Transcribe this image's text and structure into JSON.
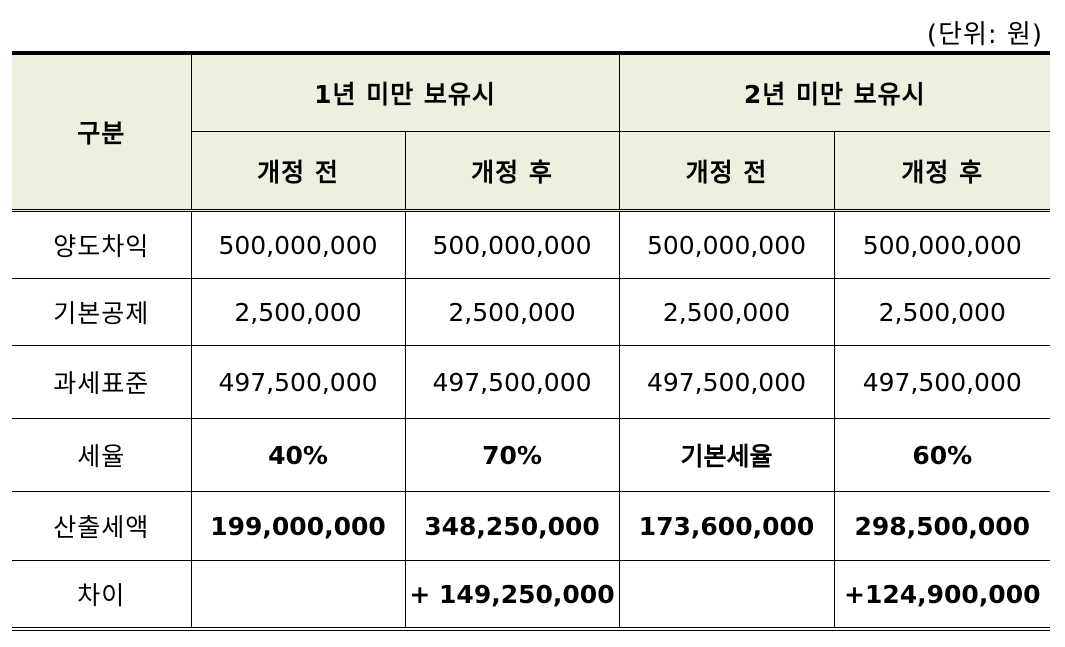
{
  "unit_note": "(단위: 원)",
  "header": {
    "gubun": "구분",
    "group1": "1년 미만 보유시",
    "group2": "2년 미만 보유시",
    "before": "개정 전",
    "after": "개정 후"
  },
  "rows": [
    {
      "label": "양도차익",
      "values": [
        "500,000,000",
        "500,000,000",
        "500,000,000",
        "500,000,000"
      ]
    },
    {
      "label": "기본공제",
      "values": [
        "2,500,000",
        "2,500,000",
        "2,500,000",
        "2,500,000"
      ]
    },
    {
      "label": "과세표준",
      "values": [
        "497,500,000",
        "497,500,000",
        "497,500,000",
        "497,500,000"
      ]
    },
    {
      "label": "세율",
      "values": [
        "40%",
        "70%",
        "기본세율",
        "60%"
      ]
    },
    {
      "label": "산출세액",
      "values": [
        "199,000,000",
        "348,250,000",
        "173,600,000",
        "298,500,000"
      ]
    },
    {
      "label": "차이",
      "values": [
        "",
        "+ 149,250,000",
        "",
        "+124,900,000"
      ]
    }
  ]
}
